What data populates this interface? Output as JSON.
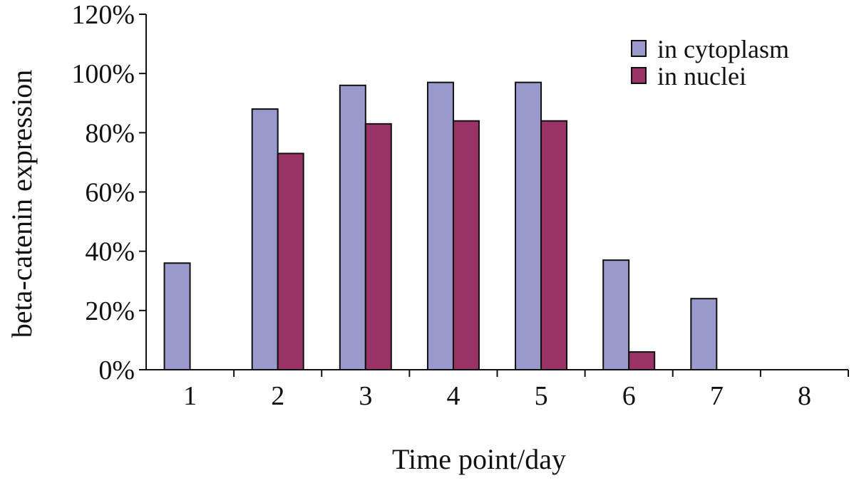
{
  "chart_data": {
    "type": "bar",
    "title": "",
    "xlabel": "Time point/day",
    "ylabel": "beta-catenin expression",
    "categories": [
      "1",
      "2",
      "3",
      "4",
      "5",
      "6",
      "7",
      "8"
    ],
    "ylim": [
      0,
      120
    ],
    "yticks": [
      "0%",
      "20%",
      "40%",
      "60%",
      "80%",
      "100%",
      "120%"
    ],
    "grid": false,
    "legend_position": "top-right",
    "series": [
      {
        "name": "in cytoplasm",
        "color": "#9999cc",
        "values": [
          36,
          88,
          96,
          97,
          97,
          37,
          24,
          0
        ]
      },
      {
        "name": "in nuclei",
        "color": "#993366",
        "values": [
          0,
          73,
          83,
          84,
          84,
          6,
          0,
          0
        ]
      }
    ]
  }
}
